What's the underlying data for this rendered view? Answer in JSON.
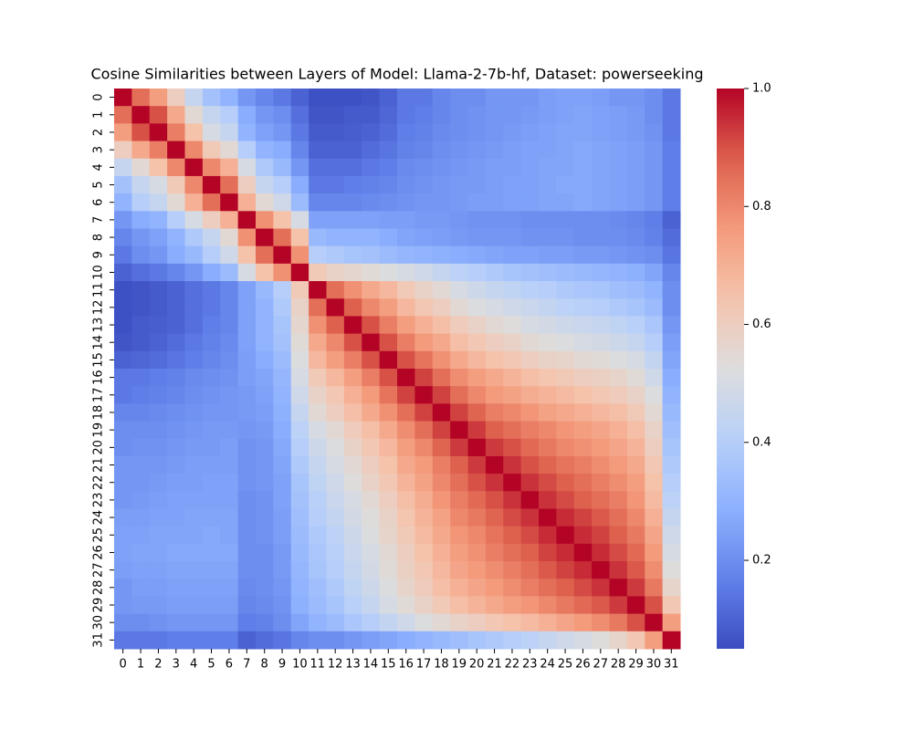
{
  "chart_data": {
    "type": "heatmap",
    "title": "Cosine Similarities between Layers of Model: Llama-2-7b-hf, Dataset: powerseeking",
    "colormap": "coolwarm",
    "x": [
      0,
      1,
      2,
      3,
      4,
      5,
      6,
      7,
      8,
      9,
      10,
      11,
      12,
      13,
      14,
      15,
      16,
      17,
      18,
      19,
      20,
      21,
      22,
      23,
      24,
      25,
      26,
      27,
      28,
      29,
      30,
      31
    ],
    "y": [
      0,
      1,
      2,
      3,
      4,
      5,
      6,
      7,
      8,
      9,
      10,
      11,
      12,
      13,
      14,
      15,
      16,
      17,
      18,
      19,
      20,
      21,
      22,
      23,
      24,
      25,
      26,
      27,
      28,
      29,
      30,
      31
    ],
    "zlim": [
      0.05,
      1.0
    ],
    "zticks": [
      0.2,
      0.4,
      0.6,
      0.8,
      {
        "value": 1.0,
        "label": "1.0"
      }
    ],
    "values": [
      [
        1,
        0.85,
        0.75,
        0.6,
        0.45,
        0.35,
        0.3,
        0.22,
        0.18,
        0.15,
        0.1,
        0.06,
        0.06,
        0.06,
        0.07,
        0.1,
        0.15,
        0.15,
        0.18,
        0.2,
        0.2,
        0.22,
        0.22,
        0.22,
        0.24,
        0.25,
        0.25,
        0.24,
        0.22,
        0.22,
        0.2,
        0.15
      ],
      [
        0.85,
        1,
        0.9,
        0.72,
        0.55,
        0.45,
        0.4,
        0.28,
        0.22,
        0.2,
        0.13,
        0.07,
        0.07,
        0.08,
        0.08,
        0.11,
        0.15,
        0.16,
        0.18,
        0.2,
        0.21,
        0.22,
        0.22,
        0.23,
        0.24,
        0.25,
        0.26,
        0.25,
        0.24,
        0.23,
        0.2,
        0.15
      ],
      [
        0.75,
        0.9,
        1,
        0.82,
        0.65,
        0.5,
        0.45,
        0.3,
        0.25,
        0.22,
        0.15,
        0.08,
        0.08,
        0.09,
        0.1,
        0.12,
        0.16,
        0.17,
        0.19,
        0.2,
        0.21,
        0.22,
        0.23,
        0.24,
        0.25,
        0.26,
        0.26,
        0.25,
        0.24,
        0.23,
        0.21,
        0.15
      ],
      [
        0.6,
        0.72,
        0.82,
        1,
        0.8,
        0.62,
        0.55,
        0.4,
        0.3,
        0.28,
        0.18,
        0.1,
        0.1,
        0.1,
        0.12,
        0.14,
        0.17,
        0.18,
        0.2,
        0.21,
        0.22,
        0.23,
        0.24,
        0.25,
        0.25,
        0.26,
        0.27,
        0.26,
        0.25,
        0.24,
        0.22,
        0.16
      ],
      [
        0.45,
        0.55,
        0.65,
        0.8,
        1,
        0.8,
        0.7,
        0.5,
        0.38,
        0.32,
        0.22,
        0.13,
        0.13,
        0.13,
        0.15,
        0.16,
        0.19,
        0.2,
        0.21,
        0.22,
        0.23,
        0.24,
        0.24,
        0.25,
        0.26,
        0.26,
        0.27,
        0.26,
        0.25,
        0.24,
        0.22,
        0.16
      ],
      [
        0.35,
        0.45,
        0.5,
        0.62,
        0.8,
        1,
        0.85,
        0.6,
        0.45,
        0.4,
        0.28,
        0.15,
        0.15,
        0.16,
        0.17,
        0.18,
        0.2,
        0.21,
        0.22,
        0.23,
        0.23,
        0.24,
        0.25,
        0.25,
        0.26,
        0.27,
        0.27,
        0.26,
        0.25,
        0.24,
        0.22,
        0.16
      ],
      [
        0.3,
        0.4,
        0.45,
        0.55,
        0.7,
        0.85,
        1,
        0.7,
        0.55,
        0.48,
        0.33,
        0.18,
        0.18,
        0.18,
        0.19,
        0.2,
        0.21,
        0.22,
        0.22,
        0.23,
        0.24,
        0.24,
        0.25,
        0.25,
        0.26,
        0.26,
        0.27,
        0.26,
        0.25,
        0.24,
        0.22,
        0.16
      ],
      [
        0.22,
        0.28,
        0.3,
        0.4,
        0.5,
        0.6,
        0.7,
        1,
        0.78,
        0.65,
        0.5,
        0.25,
        0.25,
        0.25,
        0.25,
        0.24,
        0.24,
        0.23,
        0.23,
        0.22,
        0.21,
        0.21,
        0.21,
        0.2,
        0.2,
        0.2,
        0.2,
        0.2,
        0.19,
        0.18,
        0.16,
        0.1
      ],
      [
        0.18,
        0.22,
        0.25,
        0.3,
        0.38,
        0.45,
        0.55,
        0.78,
        1,
        0.85,
        0.65,
        0.32,
        0.3,
        0.3,
        0.3,
        0.28,
        0.26,
        0.25,
        0.24,
        0.23,
        0.22,
        0.22,
        0.22,
        0.21,
        0.21,
        0.21,
        0.2,
        0.2,
        0.2,
        0.19,
        0.17,
        0.12
      ],
      [
        0.15,
        0.2,
        0.22,
        0.28,
        0.32,
        0.4,
        0.48,
        0.65,
        0.85,
        1,
        0.78,
        0.4,
        0.38,
        0.36,
        0.35,
        0.33,
        0.31,
        0.3,
        0.29,
        0.28,
        0.27,
        0.26,
        0.25,
        0.25,
        0.24,
        0.24,
        0.23,
        0.23,
        0.22,
        0.21,
        0.2,
        0.14
      ],
      [
        0.1,
        0.13,
        0.15,
        0.18,
        0.22,
        0.28,
        0.33,
        0.5,
        0.65,
        0.78,
        1,
        0.62,
        0.58,
        0.56,
        0.54,
        0.52,
        0.5,
        0.48,
        0.45,
        0.42,
        0.4,
        0.38,
        0.36,
        0.35,
        0.34,
        0.33,
        0.32,
        0.31,
        0.3,
        0.29,
        0.26,
        0.18
      ],
      [
        0.06,
        0.07,
        0.08,
        0.1,
        0.13,
        0.15,
        0.18,
        0.25,
        0.32,
        0.4,
        0.62,
        1,
        0.85,
        0.78,
        0.72,
        0.68,
        0.62,
        0.58,
        0.55,
        0.5,
        0.47,
        0.45,
        0.43,
        0.41,
        0.4,
        0.38,
        0.37,
        0.36,
        0.34,
        0.33,
        0.3,
        0.2
      ],
      [
        0.06,
        0.07,
        0.08,
        0.1,
        0.13,
        0.15,
        0.18,
        0.25,
        0.3,
        0.38,
        0.58,
        0.85,
        1,
        0.88,
        0.8,
        0.75,
        0.68,
        0.63,
        0.6,
        0.55,
        0.52,
        0.5,
        0.48,
        0.46,
        0.44,
        0.42,
        0.41,
        0.4,
        0.38,
        0.36,
        0.33,
        0.2
      ],
      [
        0.06,
        0.08,
        0.09,
        0.1,
        0.13,
        0.16,
        0.18,
        0.25,
        0.3,
        0.36,
        0.56,
        0.78,
        0.88,
        1,
        0.9,
        0.82,
        0.75,
        0.7,
        0.66,
        0.61,
        0.58,
        0.55,
        0.53,
        0.5,
        0.49,
        0.47,
        0.46,
        0.45,
        0.43,
        0.41,
        0.37,
        0.22
      ],
      [
        0.07,
        0.08,
        0.1,
        0.12,
        0.15,
        0.17,
        0.19,
        0.25,
        0.3,
        0.35,
        0.54,
        0.72,
        0.8,
        0.9,
        1,
        0.9,
        0.82,
        0.76,
        0.72,
        0.66,
        0.63,
        0.6,
        0.58,
        0.55,
        0.53,
        0.52,
        0.5,
        0.49,
        0.47,
        0.45,
        0.4,
        0.24
      ],
      [
        0.1,
        0.11,
        0.12,
        0.14,
        0.16,
        0.18,
        0.2,
        0.24,
        0.28,
        0.33,
        0.52,
        0.68,
        0.75,
        0.82,
        0.9,
        1,
        0.9,
        0.84,
        0.78,
        0.72,
        0.68,
        0.65,
        0.63,
        0.6,
        0.58,
        0.57,
        0.55,
        0.54,
        0.52,
        0.5,
        0.44,
        0.26
      ],
      [
        0.15,
        0.15,
        0.16,
        0.17,
        0.19,
        0.2,
        0.21,
        0.24,
        0.26,
        0.31,
        0.5,
        0.62,
        0.68,
        0.75,
        0.82,
        0.9,
        1,
        0.92,
        0.85,
        0.79,
        0.75,
        0.72,
        0.69,
        0.66,
        0.64,
        0.62,
        0.6,
        0.59,
        0.57,
        0.54,
        0.48,
        0.28
      ],
      [
        0.15,
        0.16,
        0.17,
        0.18,
        0.2,
        0.21,
        0.22,
        0.23,
        0.25,
        0.3,
        0.48,
        0.58,
        0.63,
        0.7,
        0.76,
        0.84,
        0.92,
        1,
        0.92,
        0.85,
        0.8,
        0.76,
        0.74,
        0.71,
        0.69,
        0.67,
        0.65,
        0.63,
        0.61,
        0.58,
        0.52,
        0.3
      ],
      [
        0.18,
        0.18,
        0.19,
        0.2,
        0.21,
        0.22,
        0.22,
        0.23,
        0.24,
        0.29,
        0.45,
        0.55,
        0.6,
        0.66,
        0.72,
        0.78,
        0.85,
        0.92,
        1,
        0.92,
        0.87,
        0.82,
        0.8,
        0.77,
        0.74,
        0.72,
        0.7,
        0.68,
        0.66,
        0.62,
        0.55,
        0.32
      ],
      [
        0.2,
        0.2,
        0.2,
        0.21,
        0.22,
        0.23,
        0.23,
        0.22,
        0.23,
        0.28,
        0.42,
        0.5,
        0.55,
        0.61,
        0.66,
        0.72,
        0.79,
        0.85,
        0.92,
        1,
        0.93,
        0.88,
        0.85,
        0.82,
        0.8,
        0.77,
        0.75,
        0.73,
        0.7,
        0.66,
        0.58,
        0.34
      ],
      [
        0.2,
        0.21,
        0.21,
        0.22,
        0.23,
        0.23,
        0.24,
        0.21,
        0.22,
        0.27,
        0.4,
        0.47,
        0.52,
        0.58,
        0.63,
        0.68,
        0.75,
        0.8,
        0.87,
        0.93,
        1,
        0.93,
        0.9,
        0.86,
        0.83,
        0.8,
        0.78,
        0.76,
        0.73,
        0.69,
        0.6,
        0.36
      ],
      [
        0.22,
        0.22,
        0.22,
        0.23,
        0.24,
        0.24,
        0.24,
        0.21,
        0.22,
        0.26,
        0.38,
        0.45,
        0.5,
        0.55,
        0.6,
        0.65,
        0.72,
        0.76,
        0.82,
        0.88,
        0.93,
        1,
        0.94,
        0.9,
        0.87,
        0.84,
        0.82,
        0.79,
        0.76,
        0.72,
        0.63,
        0.38
      ],
      [
        0.22,
        0.22,
        0.23,
        0.24,
        0.24,
        0.25,
        0.25,
        0.21,
        0.22,
        0.25,
        0.36,
        0.43,
        0.48,
        0.53,
        0.58,
        0.63,
        0.69,
        0.74,
        0.8,
        0.85,
        0.9,
        0.94,
        1,
        0.94,
        0.91,
        0.88,
        0.85,
        0.82,
        0.79,
        0.75,
        0.65,
        0.4
      ],
      [
        0.22,
        0.23,
        0.24,
        0.25,
        0.25,
        0.25,
        0.25,
        0.2,
        0.21,
        0.25,
        0.35,
        0.41,
        0.46,
        0.5,
        0.55,
        0.6,
        0.66,
        0.71,
        0.77,
        0.82,
        0.86,
        0.9,
        0.94,
        1,
        0.94,
        0.91,
        0.88,
        0.85,
        0.82,
        0.77,
        0.67,
        0.42
      ],
      [
        0.24,
        0.24,
        0.25,
        0.25,
        0.26,
        0.26,
        0.26,
        0.2,
        0.21,
        0.24,
        0.34,
        0.4,
        0.44,
        0.49,
        0.53,
        0.58,
        0.64,
        0.69,
        0.74,
        0.8,
        0.83,
        0.87,
        0.91,
        0.94,
        1,
        0.95,
        0.92,
        0.89,
        0.85,
        0.8,
        0.7,
        0.45
      ],
      [
        0.25,
        0.25,
        0.26,
        0.26,
        0.26,
        0.27,
        0.26,
        0.2,
        0.21,
        0.24,
        0.33,
        0.38,
        0.42,
        0.47,
        0.52,
        0.57,
        0.62,
        0.67,
        0.72,
        0.77,
        0.8,
        0.84,
        0.88,
        0.91,
        0.95,
        1,
        0.95,
        0.92,
        0.88,
        0.83,
        0.73,
        0.48
      ],
      [
        0.25,
        0.26,
        0.26,
        0.27,
        0.27,
        0.27,
        0.27,
        0.2,
        0.2,
        0.23,
        0.32,
        0.37,
        0.41,
        0.46,
        0.5,
        0.55,
        0.6,
        0.65,
        0.7,
        0.75,
        0.78,
        0.82,
        0.85,
        0.88,
        0.92,
        0.95,
        1,
        0.95,
        0.91,
        0.86,
        0.76,
        0.5
      ],
      [
        0.24,
        0.25,
        0.25,
        0.26,
        0.26,
        0.26,
        0.26,
        0.2,
        0.2,
        0.23,
        0.31,
        0.36,
        0.4,
        0.45,
        0.49,
        0.54,
        0.59,
        0.63,
        0.68,
        0.73,
        0.76,
        0.79,
        0.82,
        0.85,
        0.89,
        0.92,
        0.95,
        1,
        0.94,
        0.89,
        0.79,
        0.53
      ],
      [
        0.22,
        0.24,
        0.24,
        0.25,
        0.25,
        0.25,
        0.25,
        0.19,
        0.2,
        0.22,
        0.3,
        0.34,
        0.38,
        0.43,
        0.47,
        0.52,
        0.57,
        0.61,
        0.66,
        0.7,
        0.73,
        0.76,
        0.79,
        0.82,
        0.85,
        0.88,
        0.91,
        0.94,
        1,
        0.93,
        0.83,
        0.57
      ],
      [
        0.22,
        0.23,
        0.23,
        0.24,
        0.24,
        0.24,
        0.24,
        0.18,
        0.19,
        0.21,
        0.29,
        0.33,
        0.36,
        0.41,
        0.45,
        0.5,
        0.54,
        0.58,
        0.62,
        0.66,
        0.69,
        0.72,
        0.75,
        0.77,
        0.8,
        0.83,
        0.86,
        0.89,
        0.93,
        1,
        0.9,
        0.63
      ],
      [
        0.2,
        0.2,
        0.21,
        0.22,
        0.22,
        0.22,
        0.22,
        0.16,
        0.17,
        0.2,
        0.26,
        0.3,
        0.33,
        0.37,
        0.4,
        0.44,
        0.48,
        0.52,
        0.55,
        0.58,
        0.6,
        0.63,
        0.65,
        0.67,
        0.7,
        0.73,
        0.76,
        0.79,
        0.83,
        0.9,
        1,
        0.75
      ],
      [
        0.15,
        0.15,
        0.15,
        0.16,
        0.16,
        0.16,
        0.16,
        0.1,
        0.12,
        0.14,
        0.18,
        0.2,
        0.2,
        0.22,
        0.24,
        0.26,
        0.28,
        0.3,
        0.32,
        0.34,
        0.36,
        0.38,
        0.4,
        0.42,
        0.45,
        0.48,
        0.5,
        0.53,
        0.57,
        0.63,
        0.75,
        1
      ]
    ]
  }
}
